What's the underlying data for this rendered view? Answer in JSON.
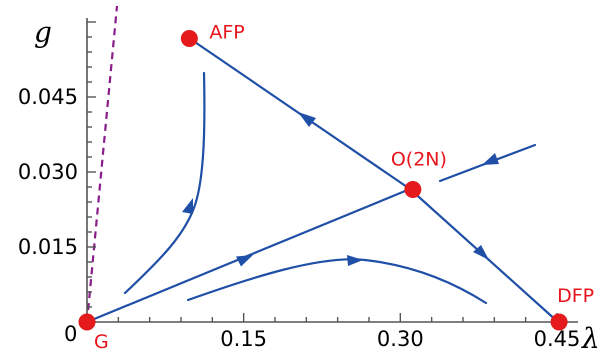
{
  "diagram": {
    "axes": {
      "x_title": "λ",
      "y_title": "g",
      "origin_label": "0",
      "x_ticks": [
        {
          "value": 0.15,
          "label": "0.15"
        },
        {
          "value": 0.3,
          "label": "0.30"
        },
        {
          "value": 0.45,
          "label": "0.45"
        }
      ],
      "y_ticks": [
        {
          "value": 0.015,
          "label": "0.015"
        },
        {
          "value": 0.03,
          "label": "0.030"
        },
        {
          "value": 0.045,
          "label": "0.045"
        }
      ],
      "x_range": [
        0,
        0.465
      ],
      "y_range": [
        0,
        0.06
      ]
    },
    "fixed_points": [
      {
        "id": "G",
        "label": "G",
        "lambda": 0.0,
        "g": 0.0
      },
      {
        "id": "AFP",
        "label": "AFP",
        "lambda": 0.098,
        "g": 0.0567
      },
      {
        "id": "O2N",
        "label": "O(2N)",
        "lambda": 0.312,
        "g": 0.0265
      },
      {
        "id": "DFP",
        "label": "DFP",
        "lambda": 0.452,
        "g": 0.0
      }
    ],
    "colors": {
      "fixed_point": "#e41a1c",
      "label": "#e8141c",
      "flow": "#1f4fa6",
      "separatrix": "#8a1c8a"
    }
  }
}
